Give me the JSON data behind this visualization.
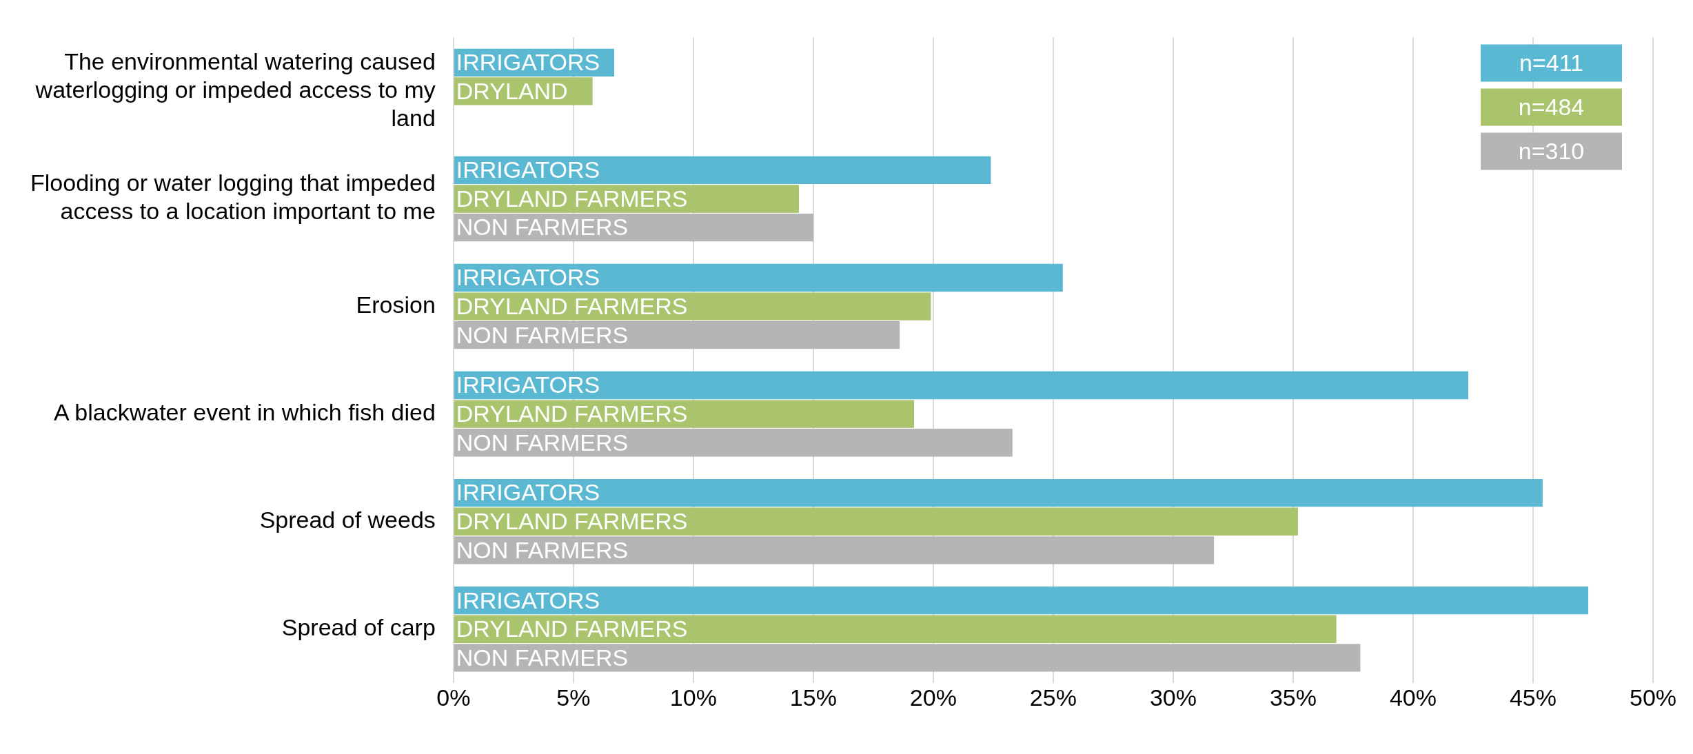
{
  "chart_data": {
    "type": "bar",
    "orientation": "horizontal",
    "categories": [
      "The environmental watering caused waterlogging or impeded access to my land",
      "Flooding or water logging that impeded access to a location important to me",
      "Erosion",
      "A blackwater event in which fish died",
      "Spread of weeds",
      "Spread of carp"
    ],
    "series": [
      {
        "name": "n=411",
        "color": "#5bb8d2",
        "values": [
          6.7,
          22.4,
          25.4,
          42.3,
          45.4,
          47.3
        ],
        "value_labels": [
          "IRRIGATORS",
          "IRRIGATORS",
          "IRRIGATORS",
          "IRRIGATORS",
          "IRRIGATORS",
          "IRRIGATORS"
        ]
      },
      {
        "name": "n=484",
        "color": "#a9c46c",
        "values": [
          5.8,
          14.4,
          19.9,
          19.2,
          35.2,
          36.8
        ],
        "value_labels": [
          "DRYLAND",
          "DRYLAND FARMERS",
          "DRYLAND FARMERS",
          "DRYLAND FARMERS",
          "DRYLAND FARMERS",
          "DRYLAND FARMERS"
        ]
      },
      {
        "name": "n=310",
        "color": "#b5b5b5",
        "values": [
          null,
          15.0,
          18.6,
          23.3,
          31.7,
          37.8
        ],
        "value_labels": [
          null,
          "NON FARMERS",
          "NON FARMERS",
          "NON FARMERS",
          "NON FARMERS",
          "NON FARMERS"
        ]
      }
    ],
    "xlim": [
      0,
      50
    ],
    "xticks": [
      {
        "value": 0,
        "label": "0%"
      },
      {
        "value": 5,
        "label": "5%"
      },
      {
        "value": 10,
        "label": "10%"
      },
      {
        "value": 15,
        "label": "15%"
      },
      {
        "value": 20,
        "label": "20%"
      },
      {
        "value": 25,
        "label": "25%"
      },
      {
        "value": 30,
        "label": "30%"
      },
      {
        "value": 35,
        "label": "35%"
      },
      {
        "value": 40,
        "label": "40%"
      },
      {
        "value": 45,
        "label": "45%"
      },
      {
        "value": 50,
        "label": "50%"
      }
    ],
    "grid": "x",
    "legend": "top right"
  }
}
